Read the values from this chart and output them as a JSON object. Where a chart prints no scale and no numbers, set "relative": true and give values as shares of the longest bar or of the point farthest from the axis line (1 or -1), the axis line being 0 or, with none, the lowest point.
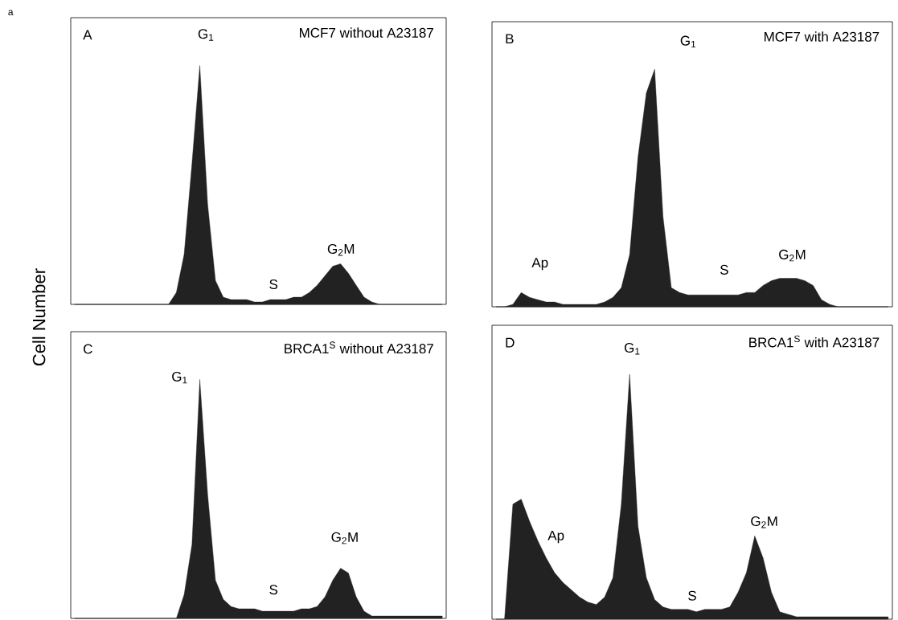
{
  "chart_data": [
    {
      "type": "area",
      "title": "MCF7 without A23187",
      "ylabel": "Cell Number",
      "relative": true,
      "color": "#222222",
      "annotations": [
        "a",
        "A",
        "G$_{1}$",
        "S",
        "G$_{2}$M"
      ],
      "categories": [
        null,
        null,
        null,
        null,
        null,
        null,
        null,
        null,
        null,
        null,
        null,
        null,
        null,
        null,
        null,
        null,
        null,
        null,
        null,
        null,
        null,
        null,
        null,
        null,
        null,
        null,
        null,
        null,
        null,
        null,
        null,
        null,
        null,
        null,
        null,
        null,
        null,
        null,
        null,
        null,
        null,
        null,
        null,
        null,
        null,
        null,
        null,
        null
      ],
      "values": [
        0,
        0,
        0,
        0,
        0,
        0,
        0,
        0,
        0,
        0,
        0,
        0,
        0,
        0.05,
        0.21,
        0.59,
        1,
        0.42,
        0.1,
        0.03,
        0.02,
        0.02,
        0.02,
        0.01,
        0.01,
        0.02,
        0.02,
        0.02,
        0.03,
        0.03,
        0.05,
        0.08,
        0.12,
        0.16,
        0.17,
        0.13,
        0.08,
        0.03,
        0.01,
        0,
        0,
        0,
        0,
        0,
        0,
        0,
        0,
        0
      ]
    },
    {
      "type": "area",
      "title": "MCF7 with A23187",
      "relative": true,
      "color": "#222222",
      "annotations": [
        "B",
        "G$_{1}$",
        "Ap",
        "S",
        "G$_{2}$M"
      ],
      "categories": [
        null,
        null,
        null,
        null,
        null,
        null,
        null,
        null,
        null,
        null,
        null,
        null,
        null,
        null,
        null,
        null,
        null,
        null,
        null,
        null,
        null,
        null,
        null,
        null,
        null,
        null,
        null,
        null,
        null,
        null,
        null,
        null,
        null,
        null,
        null,
        null,
        null,
        null,
        null,
        null,
        null,
        null,
        null,
        null,
        null,
        null,
        null,
        null
      ],
      "values": [
        0,
        0,
        0.01,
        0.06,
        0.04,
        0.03,
        0.02,
        0.02,
        0.01,
        0.01,
        0.01,
        0.01,
        0.01,
        0.02,
        0.04,
        0.08,
        0.22,
        0.63,
        0.9,
        1,
        0.38,
        0.08,
        0.06,
        0.05,
        0.05,
        0.05,
        0.05,
        0.05,
        0.05,
        0.05,
        0.06,
        0.06,
        0.09,
        0.11,
        0.12,
        0.12,
        0.12,
        0.11,
        0.09,
        0.03,
        0.01,
        0,
        0,
        0,
        0,
        0,
        0,
        0
      ]
    },
    {
      "type": "area",
      "title": "BRCA1$^{S}$ without A23187",
      "relative": true,
      "color": "#222222",
      "annotations": [
        "C",
        "G$_{1}$",
        "S",
        "G$_{2}$M"
      ],
      "categories": [
        null,
        null,
        null,
        null,
        null,
        null,
        null,
        null,
        null,
        null,
        null,
        null,
        null,
        null,
        null,
        null,
        null,
        null,
        null,
        null,
        null,
        null,
        null,
        null,
        null,
        null,
        null,
        null,
        null,
        null,
        null,
        null,
        null,
        null,
        null,
        null,
        null,
        null,
        null,
        null,
        null,
        null,
        null,
        null,
        null,
        null,
        null,
        null
      ],
      "values": [
        0,
        0,
        0,
        0,
        0,
        0,
        0,
        0,
        0,
        0,
        0,
        0,
        0,
        0,
        0.1,
        0.31,
        1,
        0.52,
        0.16,
        0.08,
        0.05,
        0.04,
        0.04,
        0.04,
        0.03,
        0.03,
        0.03,
        0.03,
        0.03,
        0.04,
        0.04,
        0.05,
        0.09,
        0.16,
        0.21,
        0.19,
        0.09,
        0.03,
        0.01,
        0.01,
        0.01,
        0.01,
        0.01,
        0.01,
        0.01,
        0.01,
        0.01,
        0.01
      ]
    },
    {
      "type": "area",
      "title": "BRCA1$^{S}$ with A23187",
      "relative": true,
      "color": "#222222",
      "annotations": [
        "D",
        "G$_{1}$",
        "Ap",
        "S",
        "G$_{2}$M"
      ],
      "categories": [
        null,
        null,
        null,
        null,
        null,
        null,
        null,
        null,
        null,
        null,
        null,
        null,
        null,
        null,
        null,
        null,
        null,
        null,
        null,
        null,
        null,
        null,
        null,
        null,
        null,
        null,
        null,
        null,
        null,
        null,
        null,
        null,
        null,
        null,
        null,
        null,
        null,
        null,
        null,
        null,
        null,
        null,
        null,
        null,
        null,
        null,
        null,
        null
      ],
      "values": [
        0,
        0,
        0.47,
        0.49,
        0.4,
        0.32,
        0.25,
        0.19,
        0.15,
        0.12,
        0.09,
        0.07,
        0.06,
        0.09,
        0.17,
        0.47,
        1,
        0.38,
        0.17,
        0.08,
        0.05,
        0.04,
        0.04,
        0.04,
        0.03,
        0.04,
        0.04,
        0.04,
        0.05,
        0.11,
        0.19,
        0.34,
        0.25,
        0.11,
        0.03,
        0.02,
        0.01,
        0.01,
        0.01,
        0.01,
        0.01,
        0.01,
        0.01,
        0.01,
        0.01,
        0.01,
        0.01,
        0.01
      ]
    }
  ]
}
